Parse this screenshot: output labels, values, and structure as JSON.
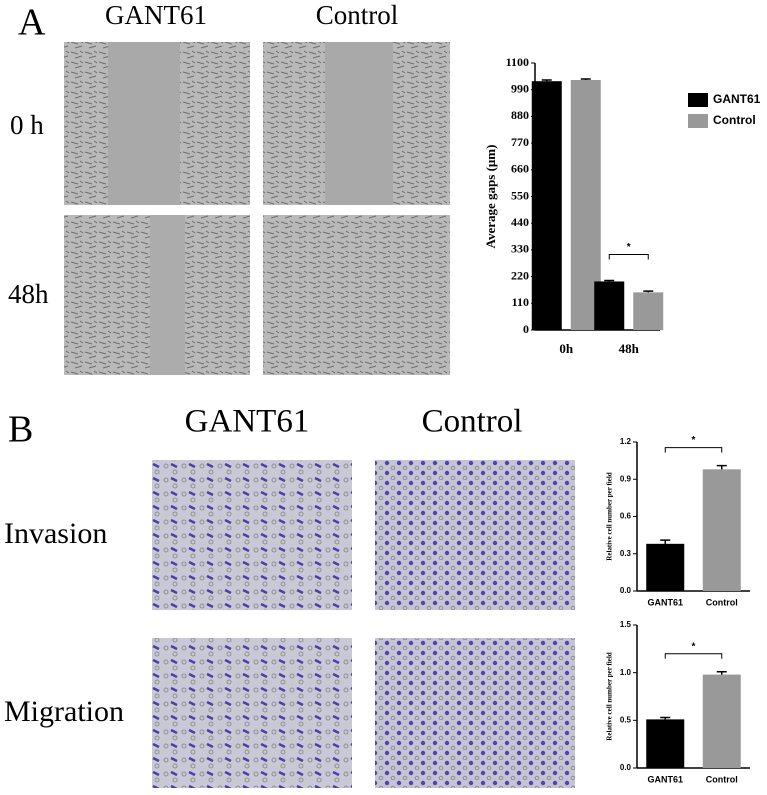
{
  "figure": {
    "panel_a": {
      "letter": "A",
      "columns": [
        "GANT61",
        "Control"
      ],
      "rows": [
        "0 h",
        "48h"
      ]
    },
    "panel_b": {
      "letter": "B",
      "columns": [
        "GANT61",
        "Control"
      ],
      "rows": [
        "Invasion",
        "Migration"
      ]
    }
  },
  "chart_data": [
    {
      "type": "grouped-bar",
      "ylabel": "Average gaps (μm)",
      "categories": [
        "0h",
        "48h"
      ],
      "series": [
        {
          "name": "GANT61",
          "color": "#000000",
          "values": [
            1025,
            200
          ],
          "errors": [
            5,
            4
          ]
        },
        {
          "name": "Control",
          "color": "#999999",
          "values": [
            1030,
            155
          ],
          "errors": [
            4,
            5
          ]
        }
      ],
      "annotation": "*",
      "annotation_category": 1,
      "ylim": [
        0,
        1100
      ],
      "yticks": [
        0,
        110,
        220,
        330,
        440,
        550,
        660,
        770,
        880,
        990,
        1100
      ],
      "legend": "upper right"
    },
    {
      "type": "bar",
      "ylabel": "Relative cell number per field",
      "categories": [
        "GANT61",
        "Control"
      ],
      "values": [
        0.38,
        0.98
      ],
      "errors": [
        0.03,
        0.03
      ],
      "colors": [
        "#000000",
        "#999999"
      ],
      "annotation": "*",
      "ylim": [
        0,
        1.2
      ],
      "yticks": [
        {
          "value": 0,
          "label": "0.0"
        },
        0.3,
        0.6,
        0.9,
        1.2
      ]
    },
    {
      "type": "bar",
      "ylabel": "Relative cell number per field",
      "categories": [
        "GANT61",
        "Control"
      ],
      "values": [
        0.51,
        0.98
      ],
      "errors": [
        0.02,
        0.03
      ],
      "colors": [
        "#000000",
        "#999999"
      ],
      "annotation": "*",
      "ylim": [
        0,
        1.5
      ],
      "yticks": [
        {
          "value": 0,
          "label": "0.0"
        },
        0.5,
        {
          "value": 1,
          "label": "1.0"
        },
        1.5
      ]
    }
  ]
}
